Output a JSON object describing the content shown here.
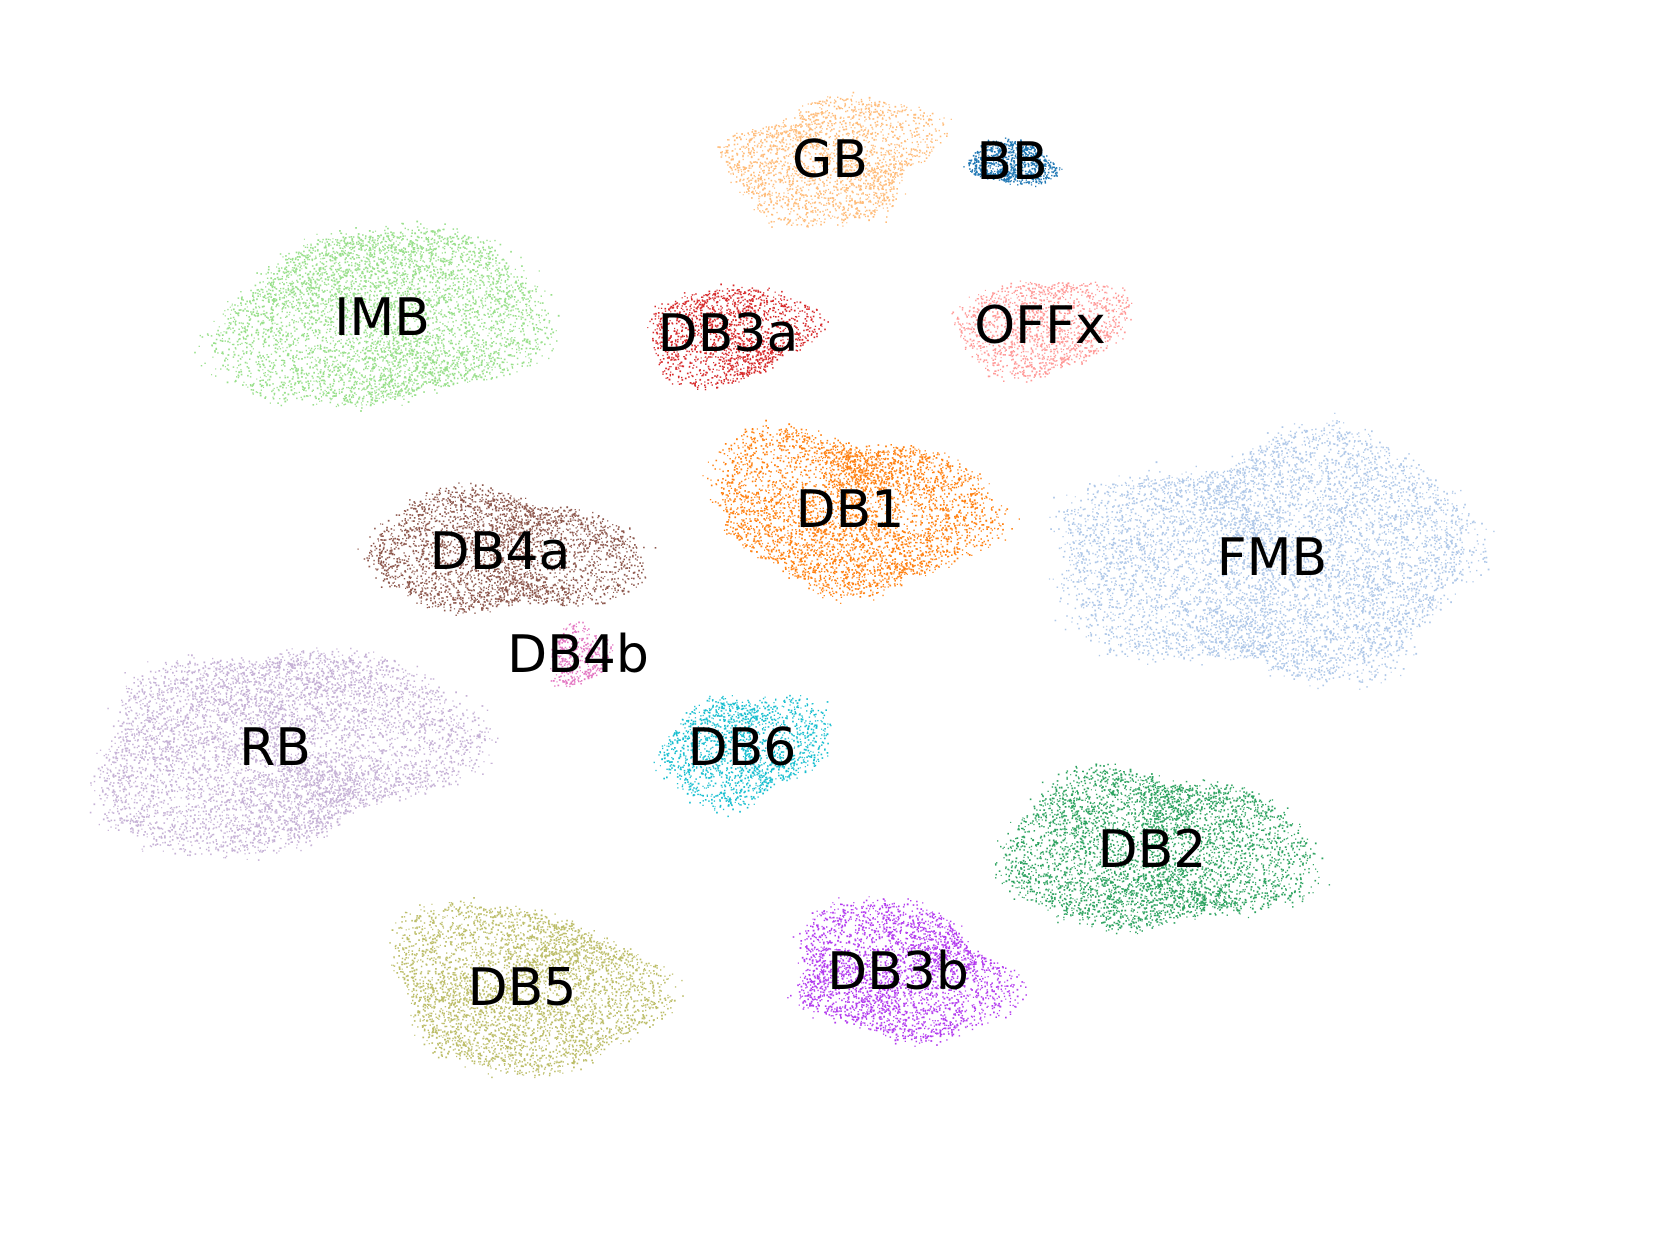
{
  "chart_data": {
    "type": "scatter",
    "title": "",
    "xlabel": "",
    "ylabel": "",
    "axes_visible": false,
    "grid": false,
    "legend": "none",
    "clusters": [
      {
        "label": "GB",
        "color": "#ffbb78",
        "center": [
          830,
          160
        ],
        "radius": [
          95,
          58
        ],
        "density": 2200,
        "seed": 11
      },
      {
        "label": "BB",
        "color": "#1f77b4",
        "center": [
          1012,
          162
        ],
        "radius": [
          38,
          22
        ],
        "density": 900,
        "seed": 12
      },
      {
        "label": "IMB",
        "color": "#98df8a",
        "center": [
          382,
          318
        ],
        "radius": [
          138,
          90
        ],
        "density": 5200,
        "seed": 13
      },
      {
        "label": "DB3a",
        "color": "#d62728",
        "center": [
          728,
          334
        ],
        "radius": [
          72,
          48
        ],
        "density": 1600,
        "seed": 14
      },
      {
        "label": "OFFx",
        "color": "#ff9896",
        "center": [
          1040,
          326
        ],
        "radius": [
          75,
          48
        ],
        "density": 1500,
        "seed": 15
      },
      {
        "label": "DB1",
        "color": "#ff7f0e",
        "center": [
          850,
          510
        ],
        "radius": [
          118,
          80
        ],
        "density": 4200,
        "seed": 16
      },
      {
        "label": "DB4a",
        "color": "#8c564b",
        "center": [
          500,
          552
        ],
        "radius": [
          112,
          62
        ],
        "density": 3200,
        "seed": 17
      },
      {
        "label": "DB4b",
        "color": "#e377c2",
        "center": [
          578,
          655
        ],
        "radius": [
          30,
          26
        ],
        "density": 420,
        "seed": 18
      },
      {
        "label": "FMB",
        "color": "#aec7e8",
        "center": [
          1272,
          558
        ],
        "radius": [
          178,
          118
        ],
        "density": 7200,
        "seed": 19
      },
      {
        "label": "RB",
        "color": "#c5b0d5",
        "center": [
          275,
          748
        ],
        "radius": [
          158,
          100
        ],
        "density": 6500,
        "seed": 20
      },
      {
        "label": "DB6",
        "color": "#17becf",
        "center": [
          742,
          748
        ],
        "radius": [
          74,
          52
        ],
        "density": 1700,
        "seed": 21
      },
      {
        "label": "DB2",
        "color": "#2ca25f",
        "center": [
          1152,
          850
        ],
        "radius": [
          125,
          82
        ],
        "density": 4600,
        "seed": 22
      },
      {
        "label": "DB5",
        "color": "#bcbd68",
        "center": [
          522,
          988
        ],
        "radius": [
          118,
          80
        ],
        "density": 4200,
        "seed": 23
      },
      {
        "label": "DB3b",
        "color": "#b23aee",
        "center": [
          898,
          972
        ],
        "radius": [
          100,
          62
        ],
        "density": 3000,
        "seed": 24
      }
    ]
  }
}
